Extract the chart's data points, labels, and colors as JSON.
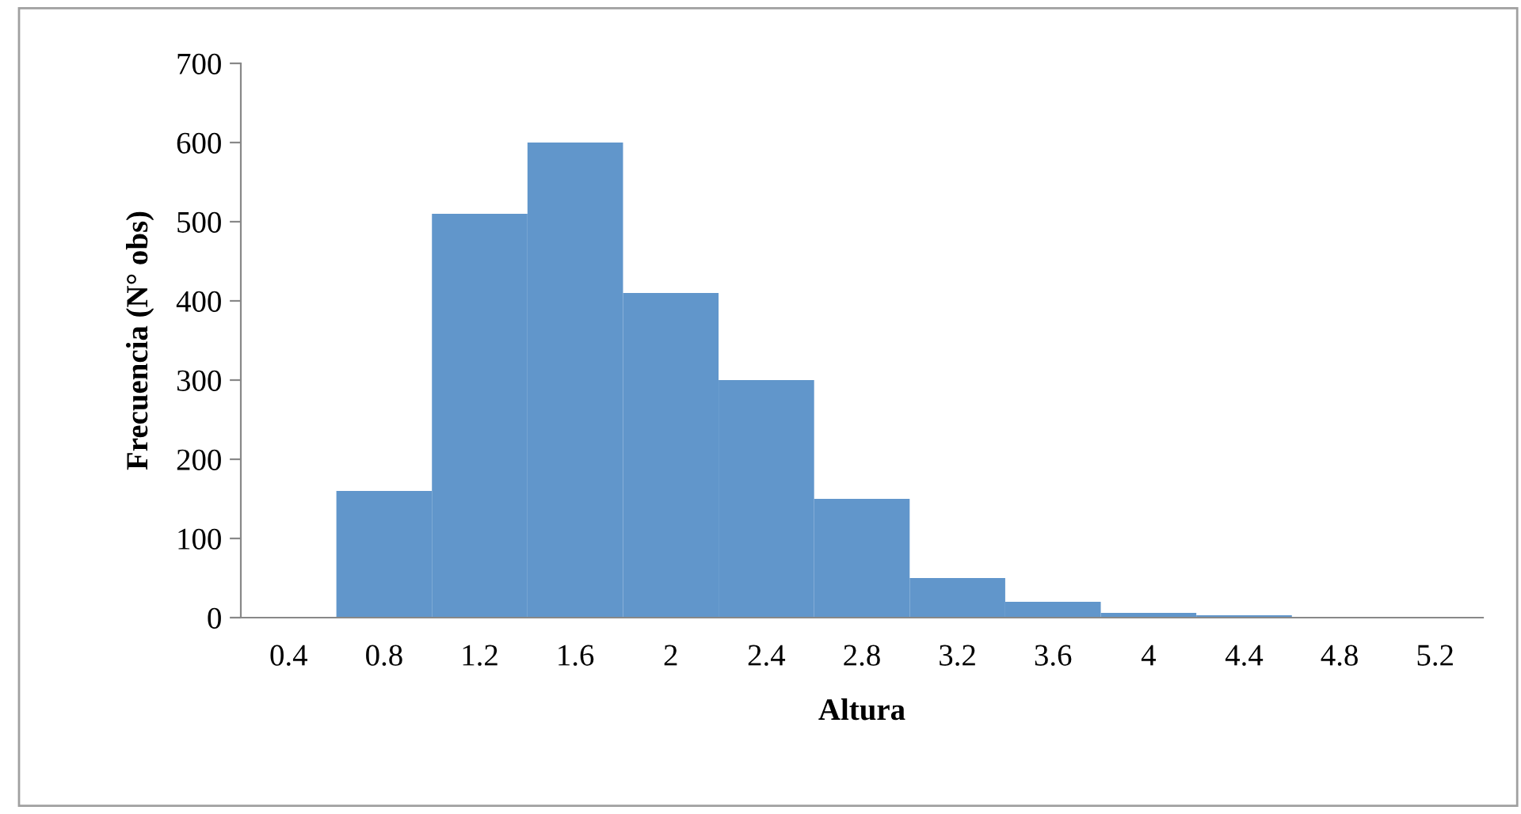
{
  "chart_data": {
    "type": "bar",
    "xlabel": "Altura",
    "ylabel": "Frecuencia (N° obs)",
    "categories": [
      "0.4",
      "0.8",
      "1.2",
      "1.6",
      "2",
      "2.4",
      "2.8",
      "3.2",
      "3.6",
      "4",
      "4.4",
      "4.8",
      "5.2"
    ],
    "values": [
      0,
      160,
      510,
      600,
      410,
      300,
      150,
      50,
      20,
      6,
      3,
      1,
      0
    ],
    "color": "#6196cb",
    "ylim": [
      0,
      700
    ],
    "yticks": [
      0,
      100,
      200,
      300,
      400,
      500,
      600,
      700
    ],
    "grid": false,
    "legend": false
  }
}
